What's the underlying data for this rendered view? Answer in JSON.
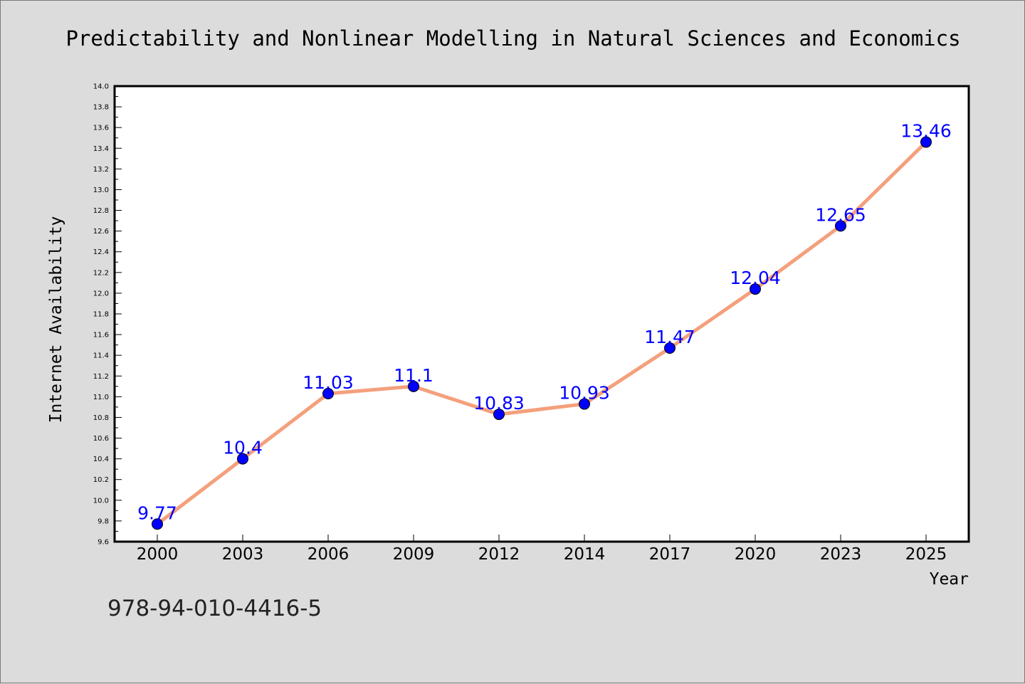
{
  "chart_data": {
    "type": "line",
    "title": "Predictability and Nonlinear Modelling in Natural Sciences and Economics",
    "xlabel": "Year",
    "ylabel": "Internet Availability",
    "categories": [
      "2000",
      "2003",
      "2006",
      "2009",
      "2012",
      "2014",
      "2017",
      "2020",
      "2023",
      "2025"
    ],
    "series": [
      {
        "values": [
          9.77,
          10.4,
          11.03,
          11.1,
          10.83,
          10.93,
          11.47,
          12.04,
          12.65,
          13.46
        ],
        "labels": [
          "9.77",
          "10.4",
          "11.03",
          "11.1",
          "10.83",
          "10.93",
          "11.47",
          "12.04",
          "12.65",
          "13.46"
        ],
        "line_color": "#f4a07c",
        "marker_color": "#0000ff"
      }
    ],
    "ylim": [
      9.6,
      14.0
    ],
    "yticks": [
      "9.6",
      "9.8",
      "10.0",
      "10.2",
      "10.4",
      "10.6",
      "10.8",
      "11.0",
      "11.2",
      "11.4",
      "11.6",
      "11.8",
      "12.0",
      "12.2",
      "12.4",
      "12.6",
      "12.8",
      "13.0",
      "13.2",
      "13.4",
      "13.6",
      "13.8",
      "14.0"
    ],
    "grid": false,
    "legend": "none",
    "data_label_color": "#0000ff",
    "background_color": "#dcdcdc",
    "plot_background_color": "#ffffff"
  },
  "footer": {
    "isbn": "978-94-010-4416-5"
  }
}
